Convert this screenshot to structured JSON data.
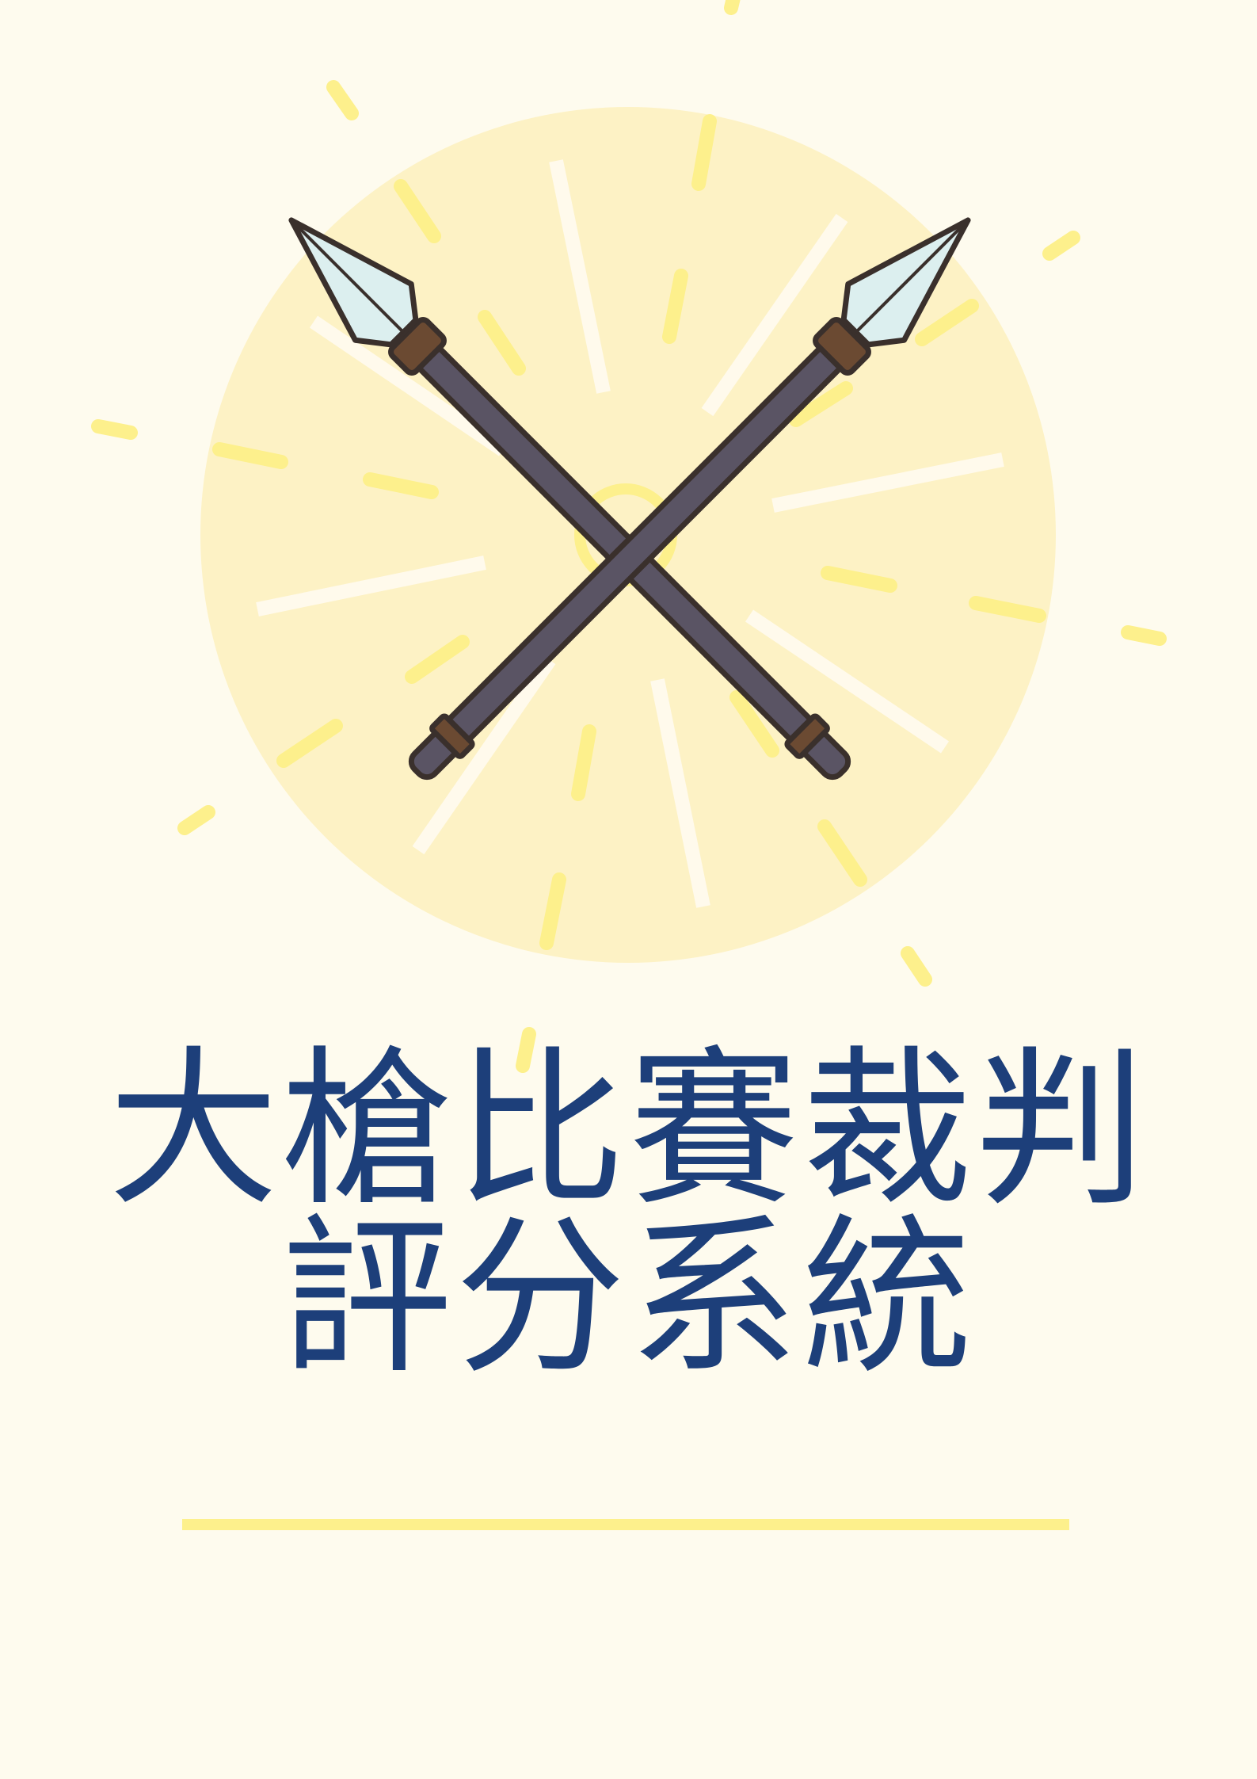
{
  "poster": {
    "title_line_1": "大槍比賽裁判",
    "title_line_2": "評分系統"
  },
  "icons": {
    "emblem": "crossed-spears-icon",
    "burst": "sunburst-icon"
  },
  "colors": {
    "background": "#fefbee",
    "circle": "#fdf2c5",
    "ray_yellow": "#fdf08c",
    "ray_white": "#fffaec",
    "title": "#1d3f7a",
    "spear_shaft": "#5a5464",
    "spear_outline": "#3a302c",
    "spear_tip": "#dcefef",
    "spear_band": "#6b4a32",
    "divider": "#fdf08c"
  }
}
